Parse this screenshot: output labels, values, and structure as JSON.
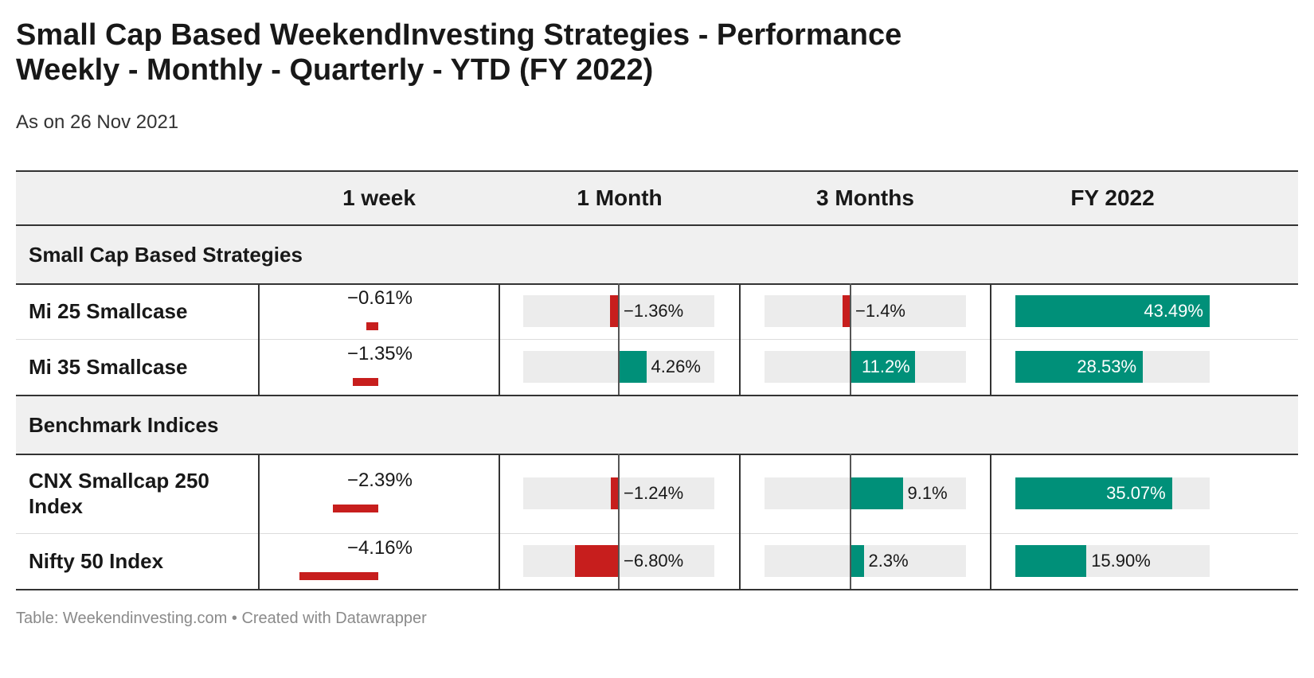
{
  "title_line1": "Small Cap Based WeekendInvesting Strategies - Performance",
  "title_line2": "Weekly - Monthly - Quarterly - YTD (FY 2022)",
  "subtitle": "As on 26 Nov 2021",
  "footer": "Table: Weekendinvesting.com • Created with Datawrapper",
  "colors": {
    "negative": "#c71e1d",
    "positive": "#009079",
    "track": "#ececec",
    "header_bg": "#f0f0f0"
  },
  "chart_data": {
    "type": "table",
    "columns": [
      "1 week",
      "1 Month",
      "3 Months",
      "FY 2022"
    ],
    "groups": [
      {
        "label": "Small Cap Based Strategies",
        "rows": [
          {
            "name": "Mi 25 Smallcase",
            "values": [
              -0.61,
              -1.36,
              -1.4,
              43.49
            ],
            "labels": [
              "−0.61%",
              "−1.36%",
              "−1.4%",
              "43.49%"
            ]
          },
          {
            "name": "Mi 35 Smallcase",
            "values": [
              -1.35,
              4.26,
              11.2,
              28.53
            ],
            "labels": [
              "−1.35%",
              "4.26%",
              "11.2%",
              "28.53%"
            ]
          }
        ]
      },
      {
        "label": "Benchmark Indices",
        "rows": [
          {
            "name": "CNX Smallcap 250 Index",
            "values": [
              -2.39,
              -1.24,
              9.1,
              35.07
            ],
            "labels": [
              "−2.39%",
              "−1.24%",
              "9.1%",
              "35.07%"
            ]
          },
          {
            "name": "Nifty 50 Index",
            "values": [
              -4.16,
              -6.8,
              2.3,
              15.9
            ],
            "labels": [
              "−4.16%",
              "−6.80%",
              "2.3%",
              "15.90%"
            ]
          }
        ]
      }
    ]
  }
}
